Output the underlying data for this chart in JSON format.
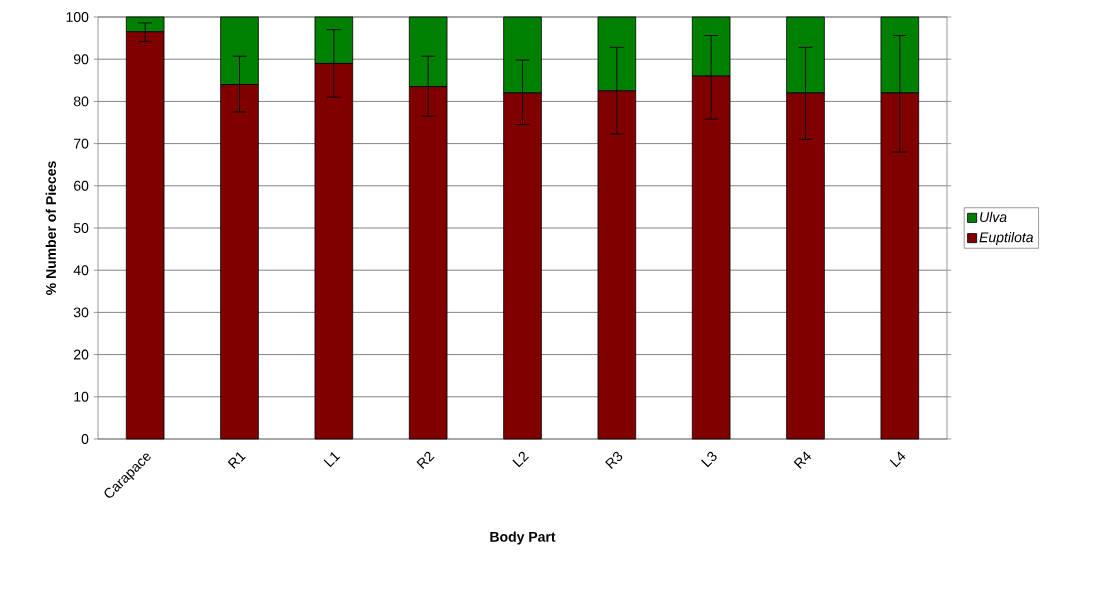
{
  "chart_data": {
    "type": "bar",
    "stacked": true,
    "xlabel": "Body Part",
    "ylabel": "% Number of Pieces",
    "categories": [
      "Carapace",
      "R1",
      "L1",
      "R2",
      "L2",
      "R3",
      "L3",
      "R4",
      "L4"
    ],
    "series": [
      {
        "name": "Euptilota",
        "color": "#800000",
        "values": [
          96.5,
          84,
          89,
          83.5,
          82,
          82.5,
          86,
          82,
          82
        ],
        "errors": [
          [
            94.2,
            98.6
          ],
          [
            77.5,
            90.7
          ],
          [
            81,
            97
          ],
          [
            76.5,
            90.7
          ],
          [
            74.5,
            89.8
          ],
          [
            72.3,
            92.8
          ],
          [
            75.8,
            95.6
          ],
          [
            71,
            92.8
          ],
          [
            68,
            95.6
          ]
        ]
      },
      {
        "name": "Ulva",
        "color": "#008000",
        "values": [
          3.5,
          16,
          11,
          16.5,
          18,
          17.5,
          14,
          18,
          18
        ]
      }
    ],
    "ylim": [
      0,
      100
    ],
    "yticks": [
      0,
      10,
      20,
      30,
      40,
      50,
      60,
      70,
      80,
      90,
      100
    ],
    "grid": "y",
    "legend": "right"
  }
}
